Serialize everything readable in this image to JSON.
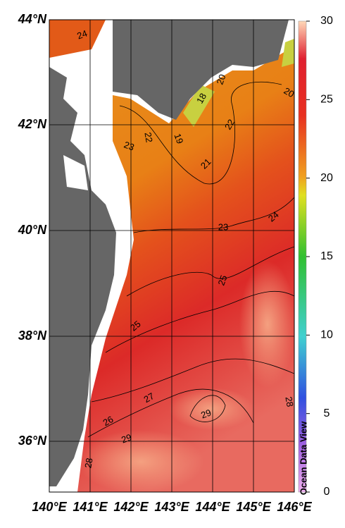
{
  "map": {
    "lat_labels": [
      "44°N",
      "42°N",
      "40°N",
      "38°N",
      "36°N"
    ],
    "lon_labels": [
      "140°E",
      "141°E",
      "142°E",
      "143°E",
      "144°E",
      "145°E",
      "146°E"
    ],
    "contour_labels": [
      "24",
      "20",
      "18",
      "20",
      "22",
      "19",
      "22",
      "23",
      "21",
      "23",
      "24",
      "25",
      "25",
      "27",
      "26",
      "29",
      "29",
      "28",
      "28"
    ]
  },
  "colorbar": {
    "ticks": [
      0,
      5,
      10,
      15,
      20,
      25,
      30
    ]
  },
  "credit": "Ocean Data View"
}
